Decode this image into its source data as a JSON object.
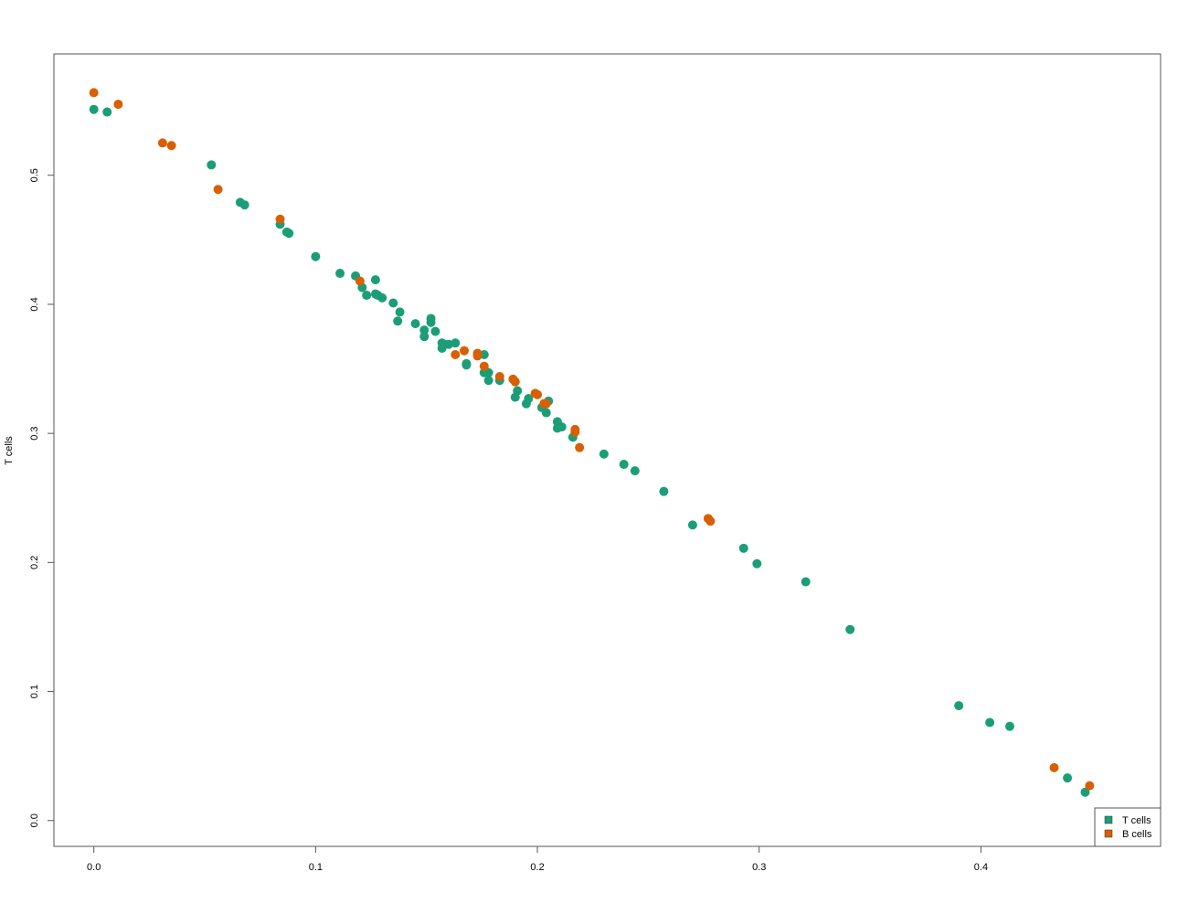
{
  "chart_data": {
    "type": "scatter",
    "title": "",
    "xlabel": "",
    "ylabel": "T cells",
    "xlim": [
      -0.018,
      0.481
    ],
    "ylim": [
      -0.02,
      0.594
    ],
    "x_ticks": [
      "0.0",
      "0.1",
      "0.2",
      "0.3",
      "0.4"
    ],
    "y_ticks": [
      "0.0",
      "0.1",
      "0.2",
      "0.3",
      "0.4",
      "0.5"
    ],
    "grid": false,
    "legend_position": "bottom-right",
    "legend": [
      {
        "label": "T cells",
        "color": "#1b9e77"
      },
      {
        "label": "B cells",
        "color": "#d95f02"
      }
    ],
    "series": [
      {
        "name": "T cells",
        "color": "#1b9e77",
        "points": [
          [
            0.0,
            0.551
          ],
          [
            0.006,
            0.549
          ],
          [
            0.053,
            0.508
          ],
          [
            0.066,
            0.479
          ],
          [
            0.068,
            0.477
          ],
          [
            0.084,
            0.462
          ],
          [
            0.087,
            0.456
          ],
          [
            0.088,
            0.455
          ],
          [
            0.1,
            0.437
          ],
          [
            0.111,
            0.424
          ],
          [
            0.118,
            0.422
          ],
          [
            0.121,
            0.413
          ],
          [
            0.123,
            0.407
          ],
          [
            0.127,
            0.419
          ],
          [
            0.127,
            0.408
          ],
          [
            0.128,
            0.407
          ],
          [
            0.13,
            0.405
          ],
          [
            0.135,
            0.401
          ],
          [
            0.138,
            0.394
          ],
          [
            0.137,
            0.387
          ],
          [
            0.145,
            0.385
          ],
          [
            0.149,
            0.375
          ],
          [
            0.149,
            0.38
          ],
          [
            0.152,
            0.389
          ],
          [
            0.152,
            0.386
          ],
          [
            0.154,
            0.379
          ],
          [
            0.157,
            0.37
          ],
          [
            0.157,
            0.366
          ],
          [
            0.158,
            0.369
          ],
          [
            0.16,
            0.369
          ],
          [
            0.163,
            0.37
          ],
          [
            0.168,
            0.353
          ],
          [
            0.168,
            0.354
          ],
          [
            0.176,
            0.361
          ],
          [
            0.176,
            0.347
          ],
          [
            0.178,
            0.341
          ],
          [
            0.178,
            0.347
          ],
          [
            0.183,
            0.341
          ],
          [
            0.19,
            0.328
          ],
          [
            0.191,
            0.333
          ],
          [
            0.195,
            0.323
          ],
          [
            0.196,
            0.327
          ],
          [
            0.202,
            0.32
          ],
          [
            0.204,
            0.316
          ],
          [
            0.205,
            0.325
          ],
          [
            0.209,
            0.309
          ],
          [
            0.209,
            0.304
          ],
          [
            0.211,
            0.305
          ],
          [
            0.216,
            0.297
          ],
          [
            0.23,
            0.284
          ],
          [
            0.239,
            0.276
          ],
          [
            0.244,
            0.271
          ],
          [
            0.257,
            0.255
          ],
          [
            0.27,
            0.229
          ],
          [
            0.293,
            0.211
          ],
          [
            0.299,
            0.199
          ],
          [
            0.321,
            0.185
          ],
          [
            0.341,
            0.148
          ],
          [
            0.39,
            0.089
          ],
          [
            0.404,
            0.076
          ],
          [
            0.413,
            0.073
          ],
          [
            0.439,
            0.033
          ],
          [
            0.447,
            0.022
          ]
        ]
      },
      {
        "name": "B cells",
        "color": "#d95f02",
        "points": [
          [
            0.0,
            0.564
          ],
          [
            0.011,
            0.555
          ],
          [
            0.031,
            0.525
          ],
          [
            0.035,
            0.523
          ],
          [
            0.056,
            0.489
          ],
          [
            0.084,
            0.466
          ],
          [
            0.12,
            0.418
          ],
          [
            0.163,
            0.361
          ],
          [
            0.167,
            0.364
          ],
          [
            0.173,
            0.362
          ],
          [
            0.173,
            0.36
          ],
          [
            0.176,
            0.352
          ],
          [
            0.183,
            0.344
          ],
          [
            0.189,
            0.342
          ],
          [
            0.19,
            0.34
          ],
          [
            0.199,
            0.331
          ],
          [
            0.2,
            0.33
          ],
          [
            0.203,
            0.323
          ],
          [
            0.204,
            0.323
          ],
          [
            0.217,
            0.303
          ],
          [
            0.217,
            0.301
          ],
          [
            0.219,
            0.289
          ],
          [
            0.277,
            0.234
          ],
          [
            0.278,
            0.232
          ],
          [
            0.433,
            0.041
          ],
          [
            0.449,
            0.027
          ]
        ]
      }
    ]
  }
}
